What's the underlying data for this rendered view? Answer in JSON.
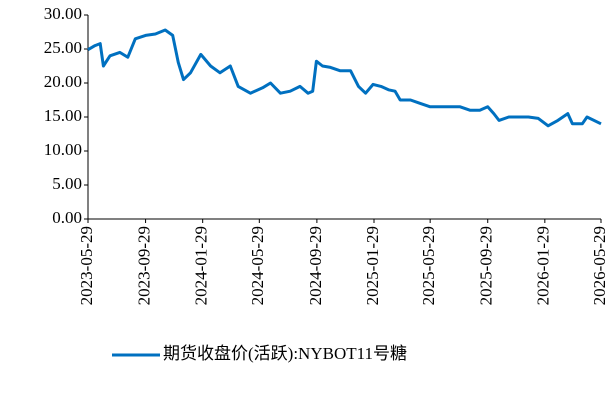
{
  "chart_data": {
    "type": "line",
    "x": [
      "2023-05-29",
      "2023-06-13",
      "2023-06-24",
      "2023-07-01",
      "2023-07-15",
      "2023-08-05",
      "2023-08-22",
      "2023-09-07",
      "2023-09-29",
      "2023-10-20",
      "2023-11-10",
      "2023-11-26",
      "2023-12-08",
      "2023-12-19",
      "2024-01-03",
      "2024-01-25",
      "2024-02-15",
      "2024-03-06",
      "2024-03-28",
      "2024-04-14",
      "2024-05-10",
      "2024-06-05",
      "2024-06-22",
      "2024-07-13",
      "2024-08-03",
      "2024-08-24",
      "2024-09-10",
      "2024-09-20",
      "2024-09-28",
      "2024-10-11",
      "2024-10-28",
      "2024-11-18",
      "2024-12-10",
      "2024-12-27",
      "2025-01-11",
      "2025-01-27",
      "2025-02-13",
      "2025-03-01",
      "2025-03-15",
      "2025-03-26",
      "2025-04-17",
      "2025-05-08",
      "2025-05-29",
      "2025-06-20",
      "2025-07-11",
      "2025-08-01",
      "2025-08-22",
      "2025-09-12",
      "2025-09-29",
      "2025-10-12",
      "2025-10-23",
      "2025-11-13",
      "2025-12-04",
      "2025-12-25",
      "2026-01-15",
      "2026-02-05",
      "2026-02-26",
      "2026-03-19",
      "2026-03-29",
      "2026-04-19",
      "2026-04-29",
      "2026-05-29"
    ],
    "series": [
      {
        "name": "期货收盘价(活跃):NYBOT11号糖",
        "color": "#0070c0",
        "values": [
          24.9,
          25.5,
          25.8,
          22.5,
          24.0,
          24.5,
          23.8,
          26.5,
          27.0,
          27.2,
          27.8,
          27.0,
          23.0,
          20.5,
          21.5,
          24.2,
          22.5,
          21.5,
          22.5,
          19.5,
          18.5,
          19.3,
          20.0,
          18.5,
          18.8,
          19.5,
          18.5,
          18.8,
          23.2,
          22.5,
          22.3,
          21.8,
          21.8,
          19.5,
          18.5,
          19.8,
          19.5,
          19.0,
          18.8,
          17.5,
          17.5,
          17.0,
          16.5,
          16.5,
          16.5,
          16.5,
          16.0,
          16.0,
          16.5,
          15.5,
          14.5,
          15.0,
          15.0,
          15.0,
          14.8,
          13.7,
          14.5,
          15.5,
          14.0,
          14.0,
          15.0,
          14.0
        ]
      }
    ],
    "xlim": [
      "2023-05-29",
      "2026-05-29"
    ],
    "xticks": [
      "2023-05-29",
      "2023-09-29",
      "2024-01-29",
      "2024-05-29",
      "2024-09-29",
      "2025-01-29",
      "2025-05-29",
      "2025-09-29",
      "2026-01-29",
      "2026-05-29"
    ],
    "ylim": [
      0,
      30
    ],
    "yticks": [
      {
        "value": 0,
        "label": "0.00"
      },
      {
        "value": 5,
        "label": "5.00"
      },
      {
        "value": 10,
        "label": "10.00"
      },
      {
        "value": 15,
        "label": "15.00"
      },
      {
        "value": 20,
        "label": "20.00"
      },
      {
        "value": 25,
        "label": "25.00"
      },
      {
        "value": 30,
        "label": "30.00"
      }
    ]
  }
}
